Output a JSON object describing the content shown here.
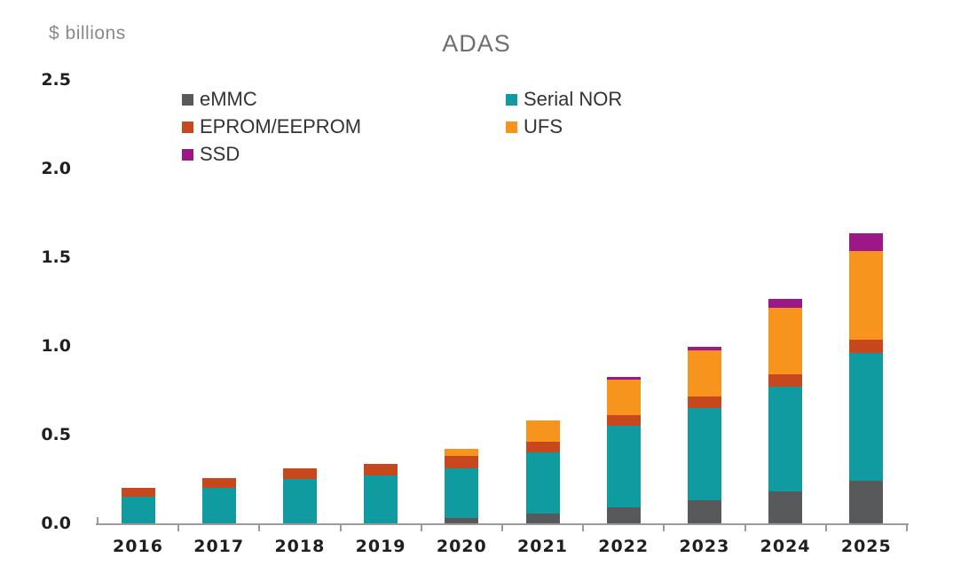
{
  "title": "ADAS",
  "axis_unit_label": "$ billions",
  "chart_data": {
    "type": "bar",
    "stacked": true,
    "title": "ADAS",
    "ylabel": "$ billions",
    "xlabel": "",
    "ylim": [
      0,
      2.5
    ],
    "yticks": [
      "0.0",
      "0.5",
      "1.0",
      "1.5",
      "2.0",
      "2.5"
    ],
    "grid": false,
    "legend_position": "top-two-columns",
    "legend_columns": [
      [
        "eMMC",
        "EPROM/EEPROM",
        "SSD"
      ],
      [
        "Serial NOR",
        "UFS"
      ]
    ],
    "categories": [
      "2016",
      "2017",
      "2018",
      "2019",
      "2020",
      "2021",
      "2022",
      "2023",
      "2024",
      "2025"
    ],
    "series": [
      {
        "name": "eMMC",
        "color": "#58595B",
        "values": [
          0,
          0,
          0,
          0,
          0.03,
          0.055,
          0.09,
          0.13,
          0.18,
          0.24
        ]
      },
      {
        "name": "Serial NOR",
        "color": "#0F9B9F",
        "values": [
          0.15,
          0.2,
          0.25,
          0.27,
          0.28,
          0.345,
          0.46,
          0.52,
          0.59,
          0.72
        ]
      },
      {
        "name": "EPROM/EEPROM",
        "color": "#C8481E",
        "values": [
          0.05,
          0.055,
          0.06,
          0.065,
          0.07,
          0.06,
          0.06,
          0.065,
          0.07,
          0.075
        ]
      },
      {
        "name": "UFS",
        "color": "#F7941E",
        "values": [
          0,
          0,
          0,
          0,
          0.04,
          0.12,
          0.2,
          0.26,
          0.375,
          0.5
        ]
      },
      {
        "name": "SSD",
        "color": "#9C1889",
        "values": [
          0,
          0,
          0,
          0,
          0,
          0,
          0.015,
          0.02,
          0.05,
          0.1
        ]
      }
    ],
    "totals": [
      0.2,
      0.255,
      0.31,
      0.335,
      0.42,
      0.58,
      0.825,
      0.995,
      1.265,
      1.635
    ],
    "axis_color": "#9b9b9b",
    "tick_label_color": "#1f1f1f"
  }
}
